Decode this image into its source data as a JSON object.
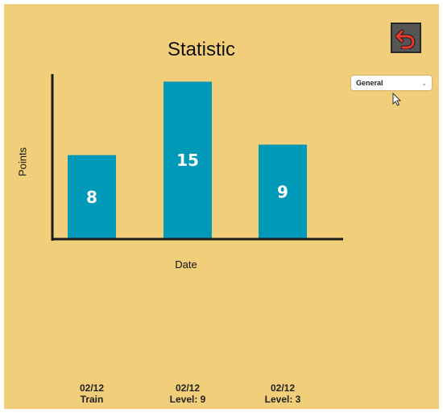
{
  "title": "Statistic",
  "back_icon": "undo-arrow-icon",
  "dropdown": {
    "selected": "General",
    "icon": "chevron-down-icon"
  },
  "colors": {
    "background": "#f1cf7a",
    "bar": "#0099b8",
    "axis": "#1c1c1c",
    "back_arrow": "#e8392a"
  },
  "chart_data": {
    "type": "bar",
    "ylabel": "Points",
    "xlabel": "Date",
    "categories": [
      {
        "date": "02/12",
        "label": "Train"
      },
      {
        "date": "02/12",
        "label": "Level: 9"
      },
      {
        "date": "02/12",
        "label": "Level: 3"
      }
    ],
    "values": [
      8,
      15,
      9
    ],
    "ylim": [
      0,
      15.8
    ]
  }
}
